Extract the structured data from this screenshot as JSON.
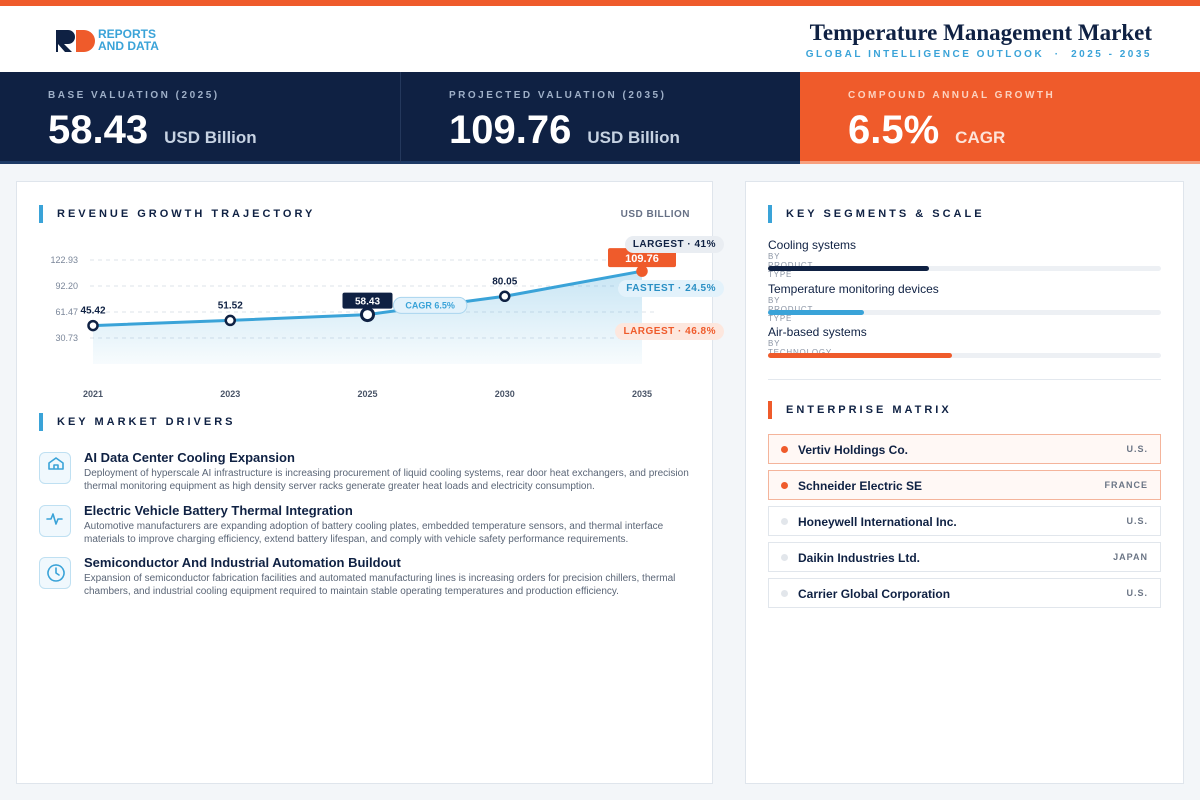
{
  "header": {
    "logo_top": "REPORTS",
    "logo_bottom": "AND DATA",
    "title": "Temperature Management Market",
    "subtitle": "GLOBAL INTELLIGENCE OUTLOOK  ·  2025 - 2035"
  },
  "kpis": [
    {
      "label": "BASE VALUATION (2025)",
      "value": "58.43",
      "unit": "USD Billion"
    },
    {
      "label": "PROJECTED VALUATION (2035)",
      "value": "109.76",
      "unit": "USD Billion"
    },
    {
      "label": "COMPOUND ANNUAL GROWTH",
      "value": "6.5%",
      "unit": "CAGR"
    }
  ],
  "chart_data": {
    "type": "line",
    "title": "REVENUE GROWTH TRAJECTORY",
    "unit_label": "USD BILLION",
    "categories": [
      "2021",
      "2023",
      "2025",
      "2030",
      "2035"
    ],
    "values": [
      45.42,
      51.52,
      58.43,
      80.05,
      109.76
    ],
    "color": "#3aa3d8",
    "annotation": "CAGR 6.5%",
    "ylim": [
      0,
      122.93
    ],
    "yticks": [
      30.73,
      61.47,
      {
        "value": 92.2,
        "label": "92.20"
      },
      122.93
    ],
    "grid": true
  },
  "drivers": {
    "title": "KEY MARKET DRIVERS",
    "items": [
      {
        "title": "AI Data Center Cooling Expansion",
        "text": "Deployment of hyperscale AI infrastructure is increasing procurement of liquid cooling systems, rear door heat exchangers, and precision thermal monitoring equipment as high density server racks generate greater heat loads and electricity consumption."
      },
      {
        "title": "Electric Vehicle Battery Thermal Integration",
        "text": "Automotive manufacturers are expanding adoption of battery cooling plates, embedded temperature sensors, and thermal interface materials to improve charging efficiency, extend battery lifespan, and comply with vehicle safety performance requirements."
      },
      {
        "title": "Semiconductor And Industrial Automation Buildout",
        "text": "Expansion of semiconductor fabrication facilities and automated manufacturing lines is increasing orders for precision chillers, thermal chambers, and industrial cooling equipment required to maintain stable operating temperatures and production efficiency."
      }
    ]
  },
  "segments": {
    "title": "KEY SEGMENTS & SCALE",
    "items": [
      {
        "name": "Cooling systems",
        "group": "BY PRODUCT TYPE",
        "badge": "LARGEST · 41%",
        "share": 41,
        "color": "#0f2143"
      },
      {
        "name": "Temperature monitoring devices",
        "group": "BY PRODUCT TYPE",
        "badge": "FASTEST · 24.5%",
        "share": 24.5,
        "color": "#3aa3d8"
      },
      {
        "name": "Air-based systems",
        "group": "BY TECHNOLOGY",
        "badge": "LARGEST · 46.8%",
        "share": 46.8,
        "color": "#ef5b2b"
      }
    ]
  },
  "enterprises": {
    "title": "ENTERPRISE MATRIX",
    "items": [
      {
        "name": "Vertiv Holdings Co.",
        "country": "U.S.",
        "highlight": true
      },
      {
        "name": "Schneider Electric SE",
        "country": "FRANCE",
        "highlight": true
      },
      {
        "name": "Honeywell International Inc.",
        "country": "U.S.",
        "highlight": false
      },
      {
        "name": "Daikin Industries Ltd.",
        "country": "JAPAN",
        "highlight": false
      },
      {
        "name": "Carrier Global Corporation",
        "country": "U.S.",
        "highlight": false
      }
    ]
  }
}
